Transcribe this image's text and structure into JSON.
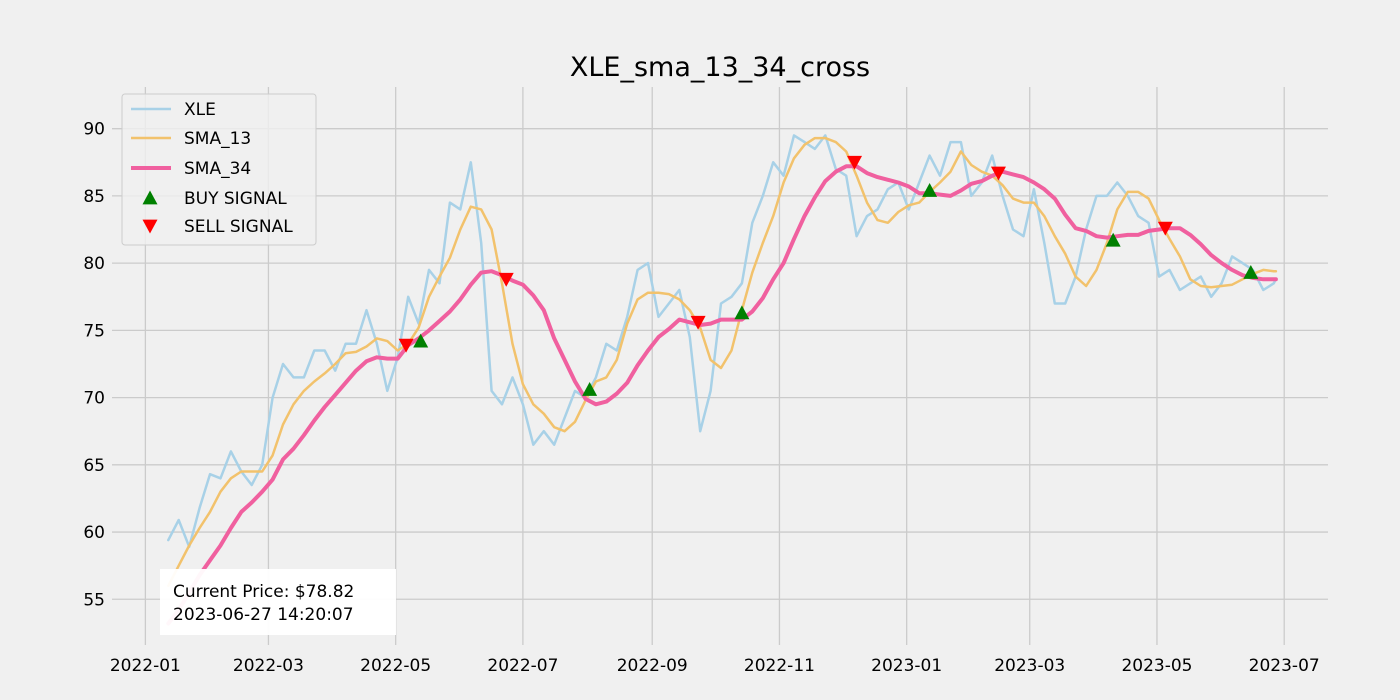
{
  "chart_data": {
    "type": "line",
    "title": "XLE_sma_13_34_cross",
    "xlabel": "",
    "ylabel": "",
    "xlim": [
      "2021-12-16",
      "2023-07-22"
    ],
    "ylim": [
      51.6,
      93.1
    ],
    "x_ticks": [
      "2022-01",
      "2022-03",
      "2022-05",
      "2022-07",
      "2022-09",
      "2022-11",
      "2023-01",
      "2023-03",
      "2023-05",
      "2023-07"
    ],
    "y_ticks": [
      55,
      60,
      65,
      70,
      75,
      80,
      85,
      90
    ],
    "grid": true,
    "legend_position": "top-left",
    "x": [
      "2022-01-12",
      "2022-01-17",
      "2022-01-22",
      "2022-01-27",
      "2022-02-01",
      "2022-02-06",
      "2022-02-11",
      "2022-02-16",
      "2022-02-21",
      "2022-02-26",
      "2022-03-03",
      "2022-03-08",
      "2022-03-13",
      "2022-03-18",
      "2022-03-23",
      "2022-03-28",
      "2022-04-02",
      "2022-04-07",
      "2022-04-12",
      "2022-04-17",
      "2022-04-22",
      "2022-04-27",
      "2022-05-02",
      "2022-05-07",
      "2022-05-12",
      "2022-05-17",
      "2022-05-22",
      "2022-05-27",
      "2022-06-01",
      "2022-06-06",
      "2022-06-11",
      "2022-06-16",
      "2022-06-21",
      "2022-06-26",
      "2022-07-01",
      "2022-07-06",
      "2022-07-11",
      "2022-07-16",
      "2022-07-21",
      "2022-07-26",
      "2022-07-31",
      "2022-08-05",
      "2022-08-10",
      "2022-08-15",
      "2022-08-20",
      "2022-08-25",
      "2022-08-30",
      "2022-09-04",
      "2022-09-09",
      "2022-09-14",
      "2022-09-19",
      "2022-09-24",
      "2022-09-29",
      "2022-10-04",
      "2022-10-09",
      "2022-10-14",
      "2022-10-19",
      "2022-10-24",
      "2022-10-29",
      "2022-11-03",
      "2022-11-08",
      "2022-11-13",
      "2022-11-18",
      "2022-11-23",
      "2022-11-28",
      "2022-12-03",
      "2022-12-08",
      "2022-12-13",
      "2022-12-18",
      "2022-12-23",
      "2022-12-28",
      "2023-01-02",
      "2023-01-07",
      "2023-01-12",
      "2023-01-17",
      "2023-01-22",
      "2023-01-27",
      "2023-02-01",
      "2023-02-06",
      "2023-02-11",
      "2023-02-16",
      "2023-02-21",
      "2023-02-26",
      "2023-03-03",
      "2023-03-08",
      "2023-03-13",
      "2023-03-18",
      "2023-03-23",
      "2023-03-28",
      "2023-04-02",
      "2023-04-07",
      "2023-04-12",
      "2023-04-17",
      "2023-04-22",
      "2023-04-27",
      "2023-05-02",
      "2023-05-07",
      "2023-05-12",
      "2023-05-17",
      "2023-05-22",
      "2023-05-27",
      "2023-06-01",
      "2023-06-06",
      "2023-06-11",
      "2023-06-16",
      "2023-06-21",
      "2023-06-26",
      "2023-06-27"
    ],
    "series": [
      {
        "name": "XLE",
        "color": "#a8d1e7",
        "values": [
          59.4,
          60.9,
          58.9,
          61.8,
          64.3,
          64,
          66,
          64.5,
          63.5,
          65,
          70,
          72.5,
          71.5,
          71.5,
          73.5,
          73.5,
          72,
          74,
          74,
          76.5,
          74,
          70.5,
          73,
          77.5,
          75.5,
          79.5,
          78.5,
          84.5,
          84,
          87.5,
          81.5,
          70.5,
          69.5,
          71.5,
          69.5,
          66.5,
          67.5,
          66.5,
          68.5,
          70.5,
          70,
          71.5,
          74,
          73.5,
          76,
          79.5,
          80,
          76,
          77,
          78,
          74.5,
          67.5,
          70.5,
          77,
          77.5,
          78.5,
          83,
          85,
          87.5,
          86.5,
          89.5,
          89,
          88.5,
          89.5,
          87,
          86.5,
          82,
          83.5,
          84,
          85.5,
          86,
          84,
          86,
          88,
          86.5,
          89,
          89,
          85,
          86,
          88,
          85,
          82.5,
          82,
          85.5,
          81.5,
          77,
          77,
          79,
          82.5,
          85,
          85,
          86,
          85,
          83.5,
          83,
          79,
          79.5,
          78,
          78.5,
          79,
          77.5,
          78.5,
          80.5,
          80,
          79.5,
          78,
          78.5,
          78.82
        ]
      },
      {
        "name": "SMA_13",
        "color": "#f2c26c",
        "values": [
          56,
          57.5,
          59,
          60.3,
          61.5,
          63,
          64,
          64.5,
          64.5,
          64.5,
          65.7,
          68,
          69.5,
          70.5,
          71.2,
          71.8,
          72.5,
          73.3,
          73.4,
          73.8,
          74.4,
          74.2,
          73.5,
          74,
          75.2,
          77.5,
          79,
          80.4,
          82.5,
          84.2,
          84,
          82.5,
          78.5,
          74,
          71,
          69.5,
          68.8,
          67.8,
          67.5,
          68.2,
          69.8,
          71.2,
          71.5,
          72.8,
          75.5,
          77.3,
          77.8,
          77.8,
          77.7,
          77.3,
          76.5,
          75.2,
          72.8,
          72.2,
          73.5,
          76.5,
          79.3,
          81.5,
          83.5,
          86,
          87.8,
          88.8,
          89.3,
          89.3,
          89,
          88.3,
          86.5,
          84.5,
          83.2,
          83,
          83.8,
          84.3,
          84.5,
          85.3,
          86,
          86.8,
          88.3,
          87.3,
          86.8,
          86.5,
          85.8,
          84.8,
          84.5,
          84.5,
          83.5,
          82,
          80.7,
          79,
          78.3,
          79.5,
          81.5,
          84,
          85.3,
          85.3,
          84.8,
          83.2,
          81.8,
          80.5,
          78.8,
          78.3,
          78.2,
          78.3,
          78.4,
          78.8,
          79.2,
          79.5,
          79.4,
          79.4
        ]
      },
      {
        "name": "SMA_34",
        "color": "#f0609f",
        "values": [
          53.2,
          54.2,
          55.5,
          56.8,
          57.9,
          59,
          60.3,
          61.5,
          62.2,
          63,
          63.9,
          65.4,
          66.2,
          67.2,
          68.3,
          69.3,
          70.2,
          71.1,
          72,
          72.7,
          73,
          72.9,
          72.9,
          73.9,
          74.4,
          75,
          75.7,
          76.4,
          77.3,
          78.4,
          79.3,
          79.4,
          79.1,
          78.7,
          78.4,
          77.6,
          76.5,
          74.4,
          72.8,
          71.2,
          69.9,
          69.5,
          69.7,
          70.3,
          71.1,
          72.4,
          73.5,
          74.5,
          75.1,
          75.8,
          75.6,
          75.4,
          75.5,
          75.8,
          75.8,
          75.8,
          76.4,
          77.4,
          78.8,
          80,
          81.8,
          83.5,
          84.9,
          86.1,
          86.8,
          87.2,
          87.2,
          86.7,
          86.4,
          86.2,
          86,
          85.7,
          85.2,
          85.2,
          85.1,
          85,
          85.4,
          85.9,
          86.1,
          86.5,
          86.8,
          86.6,
          86.4,
          86,
          85.5,
          84.8,
          83.6,
          82.6,
          82.4,
          82,
          81.9,
          82,
          82.1,
          82.1,
          82.4,
          82.5,
          82.6,
          82.6,
          82.1,
          81.4,
          80.6,
          80,
          79.5,
          79.1,
          78.9,
          78.8,
          78.8,
          78.8
        ]
      }
    ],
    "signals": [
      {
        "name": "BUY SIGNAL",
        "marker": "triangle-up",
        "color": "#008000",
        "points": [
          {
            "x": "2022-05-13",
            "y": 74.2
          },
          {
            "x": "2022-08-02",
            "y": 70.6
          },
          {
            "x": "2022-10-14",
            "y": 76.3
          },
          {
            "x": "2023-01-12",
            "y": 85.4
          },
          {
            "x": "2023-04-10",
            "y": 81.7
          },
          {
            "x": "2023-06-15",
            "y": 79.3
          }
        ]
      },
      {
        "name": "SELL SIGNAL",
        "marker": "triangle-down",
        "color": "#ff0000",
        "points": [
          {
            "x": "2022-05-06",
            "y": 73.9
          },
          {
            "x": "2022-06-23",
            "y": 78.8
          },
          {
            "x": "2022-09-23",
            "y": 75.6
          },
          {
            "x": "2022-12-07",
            "y": 87.5
          },
          {
            "x": "2023-02-14",
            "y": 86.7
          },
          {
            "x": "2023-05-05",
            "y": 82.6
          }
        ]
      }
    ],
    "annotation": {
      "lines": [
        "Current Price: $78.82",
        "2023-06-27 14:20:07"
      ]
    },
    "colors": {
      "background": "#f0f0f0",
      "grid": "#cbcbcb",
      "legend_border": "#cccccc",
      "annotation_box": "#ffffff"
    }
  }
}
